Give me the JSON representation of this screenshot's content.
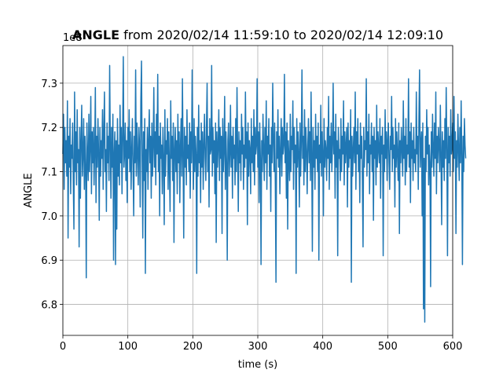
{
  "chart_data": {
    "type": "line",
    "title_bold": "ANGLE",
    "title_rest": " from 2020/02/14 11:59:10 to 2020/02/14 12:09:10",
    "xlabel": "time (s)",
    "ylabel": "ANGLE",
    "offset_label": "1e8",
    "xlim": [
      0,
      600
    ],
    "ylim": [
      6.73,
      7.385
    ],
    "x_ticks": [
      0,
      100,
      200,
      300,
      400,
      500,
      600
    ],
    "x_tick_labels": [
      "0",
      "100",
      "200",
      "300",
      "400",
      "500",
      "600"
    ],
    "y_ticks": [
      6.8,
      6.9,
      7.0,
      7.1,
      7.2,
      7.3
    ],
    "y_tick_labels": [
      "6.8",
      "6.9",
      "7.0",
      "7.1",
      "7.2",
      "7.3"
    ],
    "grid": true,
    "line_color": "#1f77b4",
    "series": [
      {
        "x_start": 0,
        "x_step": 1,
        "values": [
          7.14,
          7.23,
          7.06,
          7.2,
          7.12,
          7.17,
          7.09,
          7.26,
          6.95,
          7.18,
          7.11,
          7.22,
          7.05,
          7.16,
          7.13,
          7.21,
          7.08,
          6.97,
          7.28,
          7.1,
          7.19,
          7.07,
          7.24,
          7.12,
          7.15,
          6.93,
          7.2,
          7.04,
          7.17,
          7.25,
          7.09,
          7.14,
          7.22,
          7.06,
          7.18,
          7.11,
          6.86,
          7.21,
          7.13,
          7.08,
          7.23,
          7.1,
          7.16,
          7.27,
          7.05,
          7.19,
          7.12,
          7.2,
          7.07,
          7.15,
          7.29,
          7.03,
          7.18,
          7.11,
          7.22,
          7.14,
          6.99,
          7.2,
          7.09,
          7.17,
          7.13,
          7.24,
          7.06,
          7.19,
          7.28,
          7.1,
          7.15,
          7.01,
          7.21,
          7.12,
          7.18,
          7.08,
          7.34,
          7.16,
          7.04,
          7.2,
          7.11,
          7.23,
          6.9,
          7.14,
          7.19,
          6.89,
          7.17,
          6.97,
          7.22,
          7.09,
          7.16,
          7.07,
          7.25,
          7.12,
          7.2,
          7.05,
          7.18,
          7.36,
          7.11,
          7.14,
          7.21,
          7.08,
          7.17,
          7.03,
          7.2,
          7.13,
          7.24,
          7.1,
          7.19,
          7.06,
          7.15,
          7.22,
          7.11,
          7.0,
          7.18,
          7.12,
          7.33,
          7.09,
          7.21,
          7.14,
          7.07,
          7.2,
          7.16,
          7.02,
          7.26,
          7.35,
          7.13,
          6.95,
          7.19,
          7.08,
          7.22,
          6.87,
          7.15,
          7.1,
          7.2,
          7.06,
          7.17,
          7.24,
          7.12,
          7.18,
          7.04,
          7.21,
          7.09,
          7.16,
          7.29,
          7.11,
          7.19,
          7.07,
          7.23,
          7.14,
          7.32,
          7.1,
          7.18,
          7.0,
          7.21,
          7.13,
          7.16,
          7.05,
          7.2,
          7.12,
          6.98,
          7.24,
          7.09,
          7.17,
          7.14,
          7.22,
          7.06,
          7.19,
          7.11,
          7.01,
          7.26,
          7.13,
          7.18,
          7.08,
          7.21,
          6.94,
          7.15,
          7.2,
          7.1,
          7.17,
          7.05,
          7.23,
          7.12,
          7.19,
          7.03,
          7.16,
          7.22,
          7.09,
          7.31,
          7.14,
          6.95,
          7.2,
          7.11,
          7.18,
          7.07,
          7.24,
          7.13,
          7.16,
          7.1,
          7.21,
          7.04,
          7.19,
          7.12,
          7.33,
          7.15,
          7.06,
          7.22,
          7.1,
          7.18,
          7.14,
          6.87,
          7.2,
          7.09,
          7.25,
          7.12,
          7.17,
          7.03,
          7.21,
          7.11,
          7.19,
          7.06,
          7.16,
          7.23,
          7.13,
          7.08,
          7.2,
          7.3,
          7.1,
          7.18,
          7.02,
          7.22,
          7.14,
          7.15,
          7.34,
          7.09,
          7.2,
          7.12,
          7.17,
          7.05,
          7.21,
          6.94,
          7.19,
          7.11,
          7.16,
          7.24,
          7.08,
          7.2,
          7.13,
          7.18,
          6.96,
          7.22,
          7.1,
          7.15,
          7.27,
          7.06,
          7.19,
          7.12,
          6.9,
          7.17,
          7.21,
          7.09,
          7.14,
          7.25,
          7.11,
          7.18,
          7.04,
          7.2,
          7.13,
          7.16,
          7.07,
          7.22,
          7.1,
          7.29,
          7.15,
          7.01,
          7.19,
          7.12,
          7.17,
          7.08,
          7.23,
          7.14,
          7.2,
          7.06,
          7.16,
          7.11,
          7.28,
          7.13,
          7.19,
          6.98,
          7.21,
          7.09,
          7.17,
          7.15,
          7.05,
          7.22,
          7.12,
          7.18,
          7.1,
          7.24,
          7.07,
          7.2,
          7.14,
          7.16,
          7.31,
          7.11,
          7.19,
          7.03,
          7.21,
          7.13,
          6.89,
          7.17,
          7.1,
          7.23,
          7.15,
          7.08,
          7.2,
          7.12,
          7.26,
          7.06,
          7.18,
          7.14,
          7.22,
          7.09,
          7.16,
          7.01,
          7.2,
          7.12,
          7.3,
          7.17,
          7.1,
          7.21,
          7.07,
          6.85,
          7.19,
          7.13,
          7.24,
          7.11,
          7.18,
          7.05,
          7.15,
          7.22,
          7.09,
          7.2,
          7.14,
          7.16,
          7.32,
          7.12,
          7.19,
          7.04,
          7.21,
          6.97,
          7.17,
          7.13,
          7.08,
          7.23,
          7.1,
          7.18,
          7.15,
          7.26,
          7.06,
          7.2,
          7.12,
          7.16,
          6.87,
          7.22,
          7.11,
          7.19,
          7.14,
          7.02,
          7.21,
          7.09,
          7.17,
          7.33,
          7.13,
          7.18,
          7.07,
          7.24,
          7.1,
          7.2,
          7.15,
          7.05,
          7.16,
          7.22,
          7.12,
          7.19,
          7.08,
          7.28,
          7.14,
          6.92,
          7.2,
          7.11,
          7.17,
          7.06,
          7.23,
          7.13,
          7.18,
          7.1,
          7.21,
          6.9,
          7.16,
          7.12,
          7.25,
          7.09,
          7.19,
          7.14,
          7.0,
          7.22,
          7.11,
          7.17,
          7.15,
          7.08,
          7.2,
          7.13,
          7.27,
          7.06,
          7.18,
          7.12,
          7.21,
          7.1,
          7.16,
          7.3,
          7.14,
          7.19,
          7.04,
          7.23,
          7.11,
          7.17,
          6.91,
          7.2,
          7.13,
          7.15,
          7.08,
          7.22,
          7.1,
          7.18,
          7.14,
          7.26,
          7.07,
          7.19,
          7.12,
          7.16,
          7.2,
          7.02,
          7.21,
          7.11,
          7.17,
          7.13,
          7.24,
          6.85,
          7.18,
          7.09,
          7.15,
          7.2,
          7.12,
          7.28,
          7.06,
          7.19,
          7.14,
          7.22,
          7.1,
          7.16,
          7.03,
          7.21,
          7.13,
          7.18,
          7.08,
          6.93,
          7.2,
          7.11,
          7.17,
          7.15,
          7.31,
          7.09,
          7.19,
          7.12,
          7.23,
          7.05,
          7.16,
          7.14,
          7.21,
          7.1,
          7.18,
          6.99,
          7.2,
          7.13,
          7.17,
          7.07,
          7.25,
          7.11,
          7.19,
          7.15,
          7.12,
          7.22,
          7.04,
          7.18,
          7.14,
          7.2,
          6.91,
          7.16,
          7.1,
          7.24,
          7.13,
          7.19,
          7.08,
          7.17,
          7.21,
          7.12,
          7.06,
          7.18,
          7.15,
          7.27,
          7.1,
          7.2,
          7.13,
          7.16,
          7.02,
          7.22,
          7.11,
          7.19,
          7.14,
          7.08,
          7.21,
          6.96,
          7.17,
          7.12,
          7.2,
          7.15,
          7.09,
          7.26,
          7.13,
          7.18,
          7.07,
          7.22,
          7.1,
          7.16,
          7.14,
          7.31,
          7.11,
          7.19,
          7.03,
          7.21,
          7.13,
          7.17,
          7.08,
          7.2,
          7.12,
          7.15,
          7.1,
          7.28,
          7.14,
          7.18,
          7.06,
          7.22,
          7.33,
          7.11,
          7.16,
          7.19,
          7.0,
          7.21,
          6.79,
          7.13,
          6.76,
          7.18,
          7.1,
          7.24,
          7.14,
          7.2,
          7.07,
          7.16,
          7.12,
          6.84,
          7.19,
          7.11,
          7.23,
          7.15,
          7.09,
          7.21,
          7.13,
          7.28,
          7.05,
          7.18,
          7.12,
          7.2,
          7.16,
          7.1,
          7.25,
          7.14,
          6.98,
          7.19,
          7.11,
          7.17,
          7.08,
          7.22,
          7.13,
          7.29,
          7.15,
          6.91,
          7.2,
          7.12,
          7.18,
          7.09,
          7.24,
          7.14,
          7.16,
          7.21,
          7.1,
          7.27,
          7.13,
          7.19,
          6.96,
          7.17,
          7.11,
          7.23,
          7.15,
          7.08,
          7.2,
          7.12,
          7.26,
          7.14,
          6.89,
          7.18,
          7.1,
          7.22,
          7.16,
          7.13
        ]
      }
    ]
  }
}
